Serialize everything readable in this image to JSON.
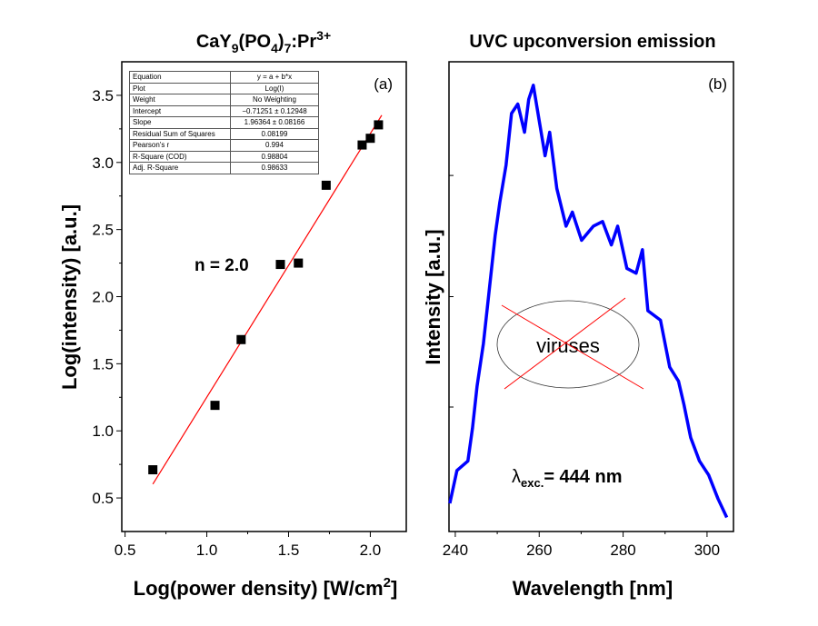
{
  "chart_data": [
    {
      "type": "scatter",
      "panel_label": "(a)",
      "title": "CaY9(PO4)7:Pr3+",
      "title_parts": {
        "base1": "CaY",
        "sub1": "9",
        "base2": "(PO",
        "sub2": "4",
        "base3": ")",
        "sub3": "7",
        "base4": ":Pr",
        "sup": "3+"
      },
      "xlabel": "Log(power density) [W/cm2]",
      "xlabel_parts": {
        "main": "Log(power density) [W/cm",
        "sup": "2",
        "end": "]"
      },
      "ylabel": "Log(intensity) [a.u.]",
      "xlim": [
        0.48,
        2.22
      ],
      "ylim": [
        0.25,
        3.75
      ],
      "xticks": [
        "0.5",
        "1.0",
        "1.5",
        "2.0"
      ],
      "xtick_values": [
        0.5,
        1.0,
        1.5,
        2.0
      ],
      "yticks": [
        "0.5",
        "1.0",
        "1.5",
        "2.0",
        "2.5",
        "3.0",
        "3.5"
      ],
      "ytick_values": [
        0.5,
        1.0,
        1.5,
        2.0,
        2.5,
        3.0,
        3.5
      ],
      "points": [
        [
          0.67,
          0.71
        ],
        [
          1.05,
          1.19
        ],
        [
          1.21,
          1.68
        ],
        [
          1.45,
          2.24
        ],
        [
          1.56,
          2.25
        ],
        [
          1.73,
          2.83
        ],
        [
          1.95,
          3.13
        ],
        [
          2.0,
          3.18
        ],
        [
          2.05,
          3.28
        ]
      ],
      "marker_color": "#000000",
      "fit": {
        "intercept": -0.71251,
        "slope": 1.96364,
        "x_range": [
          0.67,
          2.07
        ],
        "color": "#ff0000"
      },
      "annotation": "n = 2.0",
      "fit_table": [
        [
          "Equation",
          "y = a + b*x"
        ],
        [
          "Plot",
          "Log(I)"
        ],
        [
          "Weight",
          "No Weighting"
        ],
        [
          "Intercept",
          "−0.71251 ± 0.12948"
        ],
        [
          "Slope",
          "1.96364 ± 0.08166"
        ],
        [
          "Residual Sum of Squares",
          "0.08199"
        ],
        [
          "Pearson's r",
          "0.994"
        ],
        [
          "R-Square (COD)",
          "0.98804"
        ],
        [
          "Adj. R-Square",
          "0.98633"
        ]
      ]
    },
    {
      "type": "line",
      "panel_label": "(b)",
      "title": "UVC upconversion emission",
      "xlabel": "Wavelength [nm]",
      "ylabel": "Intensity [a.u.]",
      "xlim": [
        238.5,
        306.3
      ],
      "ylim": [
        0,
        1
      ],
      "xticks": [
        "240",
        "260",
        "280",
        "300"
      ],
      "xtick_values": [
        240,
        260,
        280,
        300
      ],
      "ytick_values": [
        0.265,
        0.5,
        0.758
      ],
      "line_color": "#0000ff",
      "x": [
        238.7,
        240.4,
        243.0,
        244.1,
        245.2,
        246.7,
        247.8,
        249.5,
        250.6,
        252.1,
        253.4,
        254.9,
        256.5,
        257.5,
        258.6,
        259.9,
        261.4,
        262.5,
        264.2,
        266.4,
        267.9,
        270.1,
        272.9,
        275.1,
        277.2,
        278.7,
        280.9,
        283.1,
        284.6,
        285.9,
        288.9,
        291.1,
        293.2,
        294.5,
        296.1,
        298.2,
        300.4,
        302.6,
        304.7
      ],
      "y": [
        0.06,
        0.13,
        0.15,
        0.22,
        0.31,
        0.4,
        0.49,
        0.63,
        0.7,
        0.78,
        0.89,
        0.91,
        0.85,
        0.92,
        0.95,
        0.88,
        0.8,
        0.85,
        0.73,
        0.65,
        0.68,
        0.62,
        0.65,
        0.66,
        0.61,
        0.65,
        0.56,
        0.55,
        0.6,
        0.47,
        0.45,
        0.35,
        0.32,
        0.27,
        0.2,
        0.15,
        0.12,
        0.07,
        0.03
      ],
      "annotation_text": "viruses",
      "excitation": {
        "symbol": "λ",
        "sub": "exc.",
        "value": "= 444 nm"
      }
    }
  ]
}
